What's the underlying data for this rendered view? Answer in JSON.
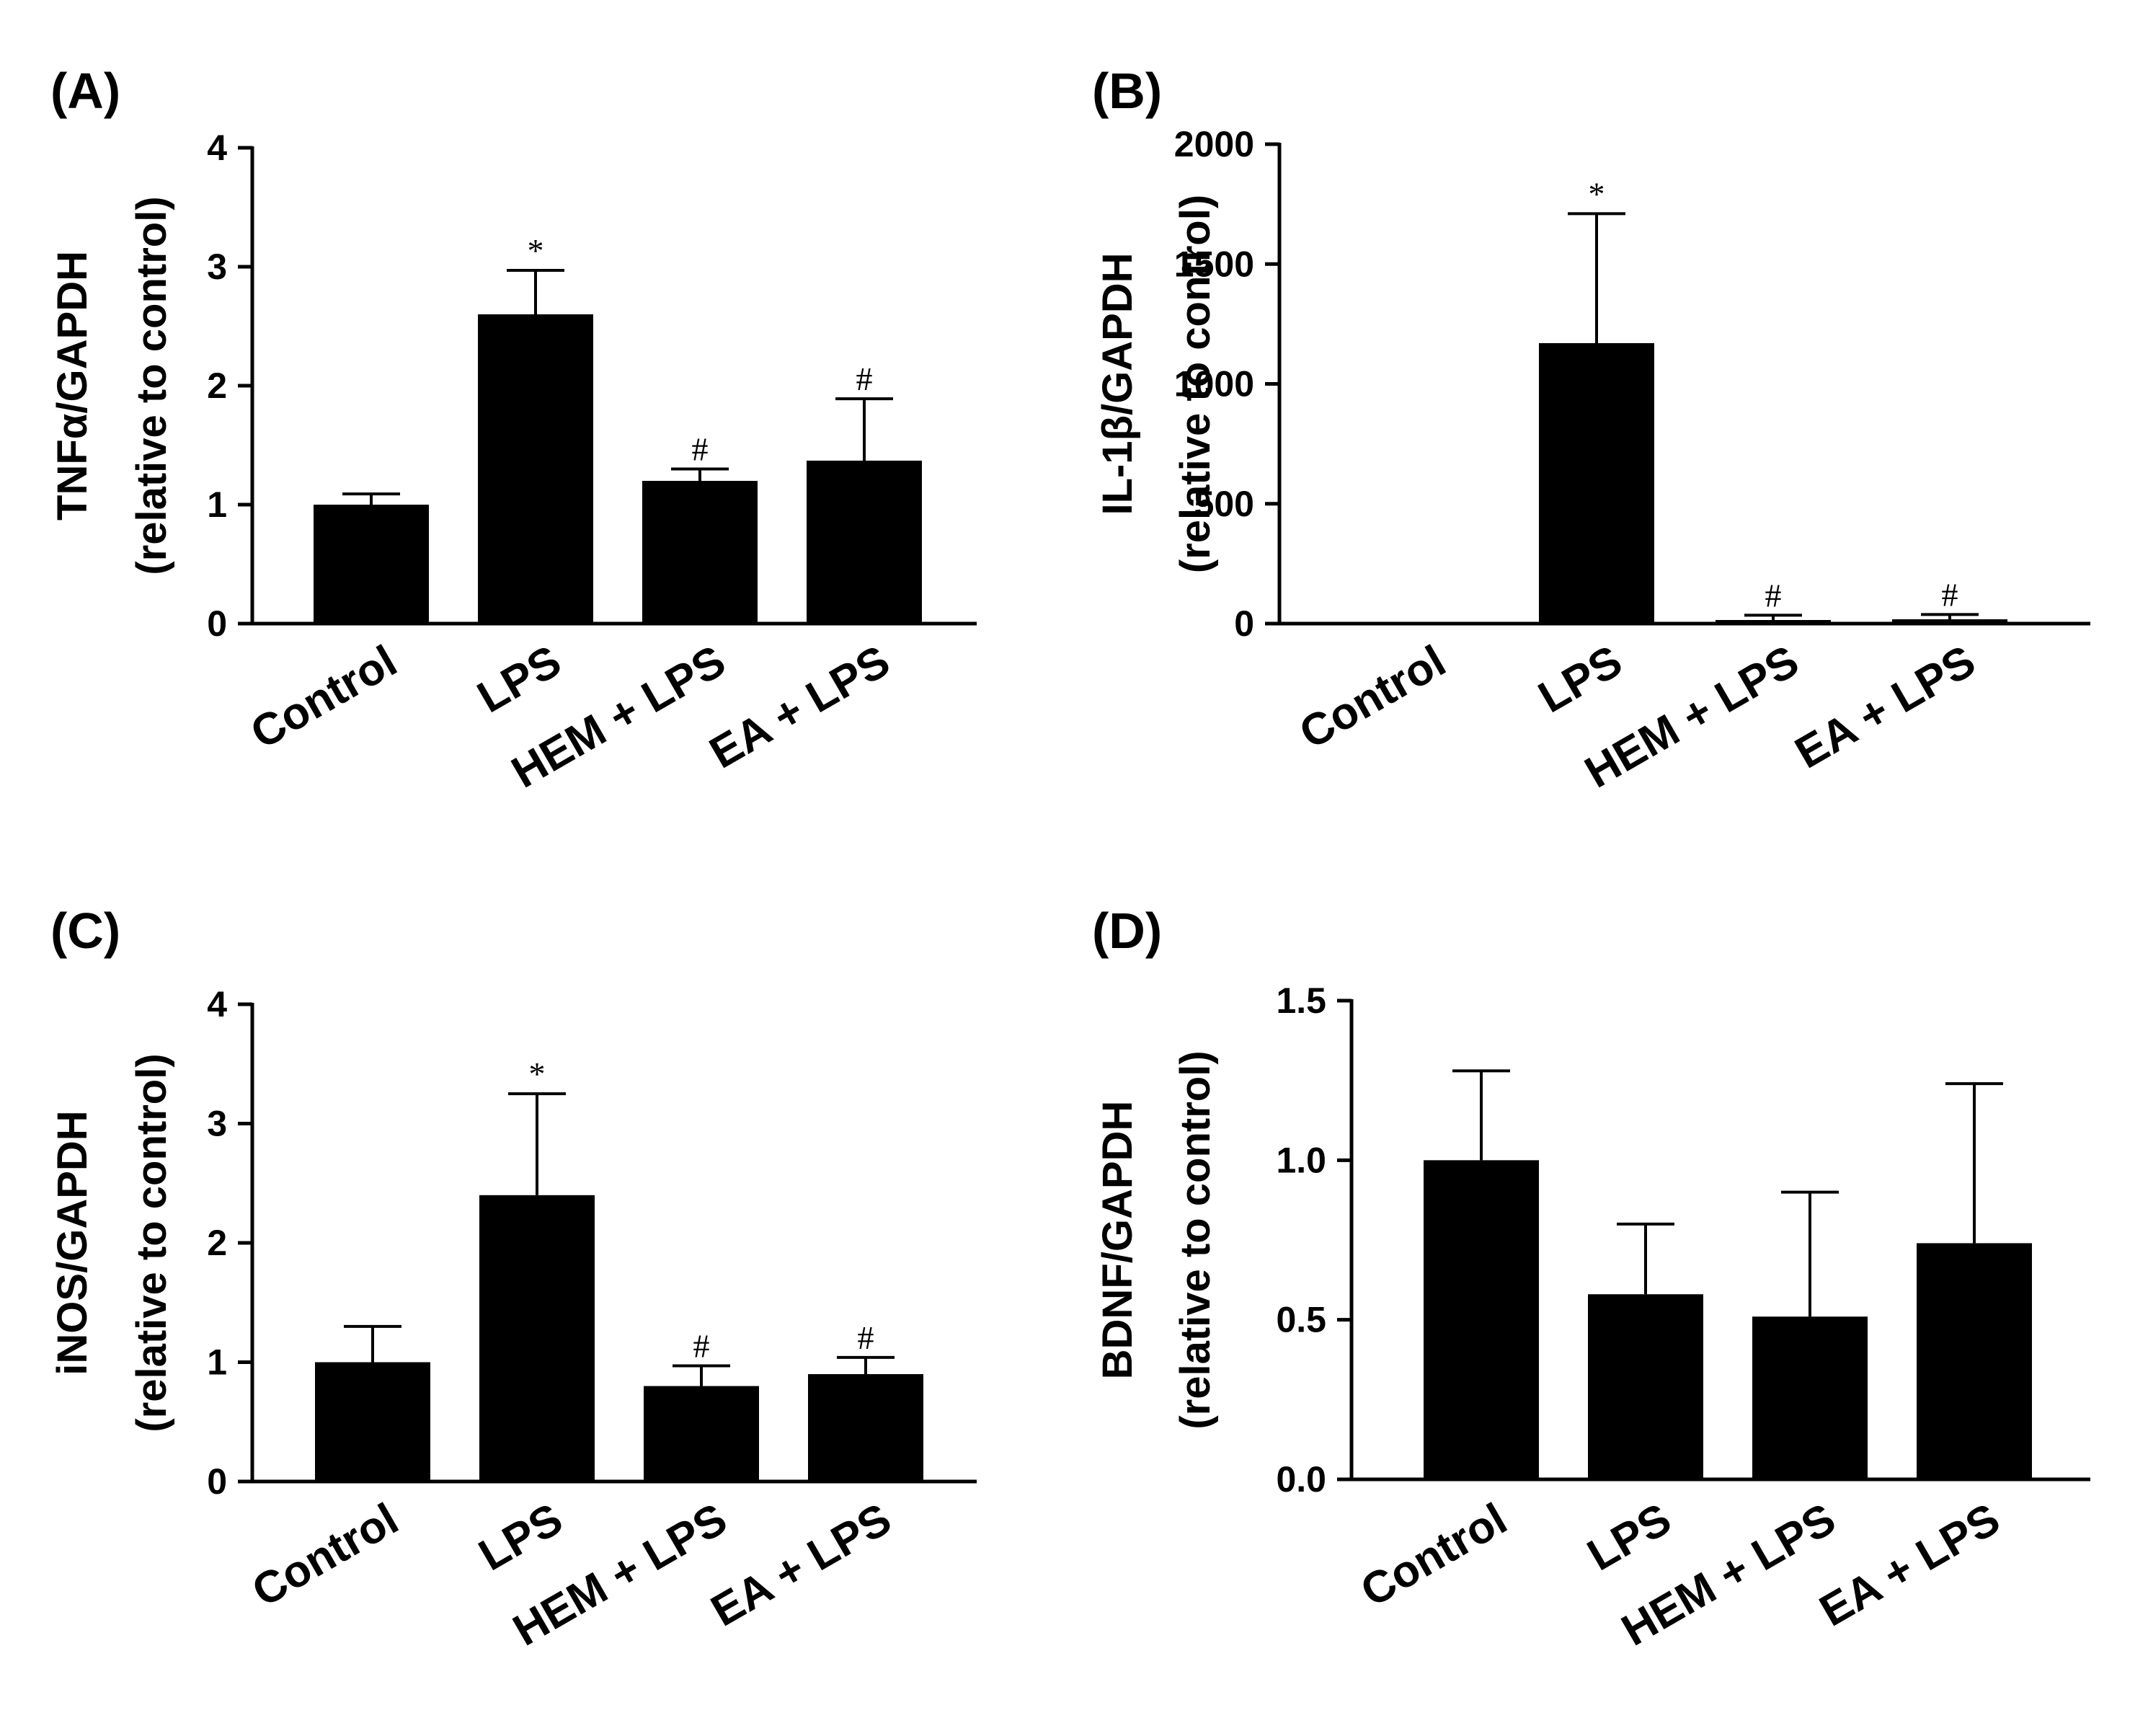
{
  "chart_data": [
    {
      "panel": "(A)",
      "type": "bar",
      "ylabel_line1": "TNFα/GAPDH",
      "ylabel_line2": "(relative to control)",
      "categories": [
        "Control",
        "LPS",
        "HEM + LPS",
        "EA + LPS"
      ],
      "values": [
        1.0,
        2.6,
        1.2,
        1.37
      ],
      "errors": [
        0.09,
        0.37,
        0.1,
        0.52
      ],
      "significance": [
        "",
        "*",
        "#",
        "#"
      ],
      "ylim": [
        0,
        4
      ],
      "yticks": [
        0,
        1,
        2,
        3,
        4
      ],
      "ytick_labels": [
        "0",
        "1",
        "2",
        "3",
        "4"
      ]
    },
    {
      "panel": "(B)",
      "type": "bar",
      "ylabel_line1": "IL-1β/GAPDH",
      "ylabel_line2": "(relative to control)",
      "categories": [
        "Control",
        "LPS",
        "HEM + LPS",
        "EA + LPS"
      ],
      "values": [
        1,
        1170,
        15,
        18
      ],
      "errors": [
        0,
        540,
        20,
        20
      ],
      "significance": [
        "",
        "*",
        "#",
        "#"
      ],
      "ylim": [
        0,
        2000
      ],
      "yticks": [
        0,
        500,
        1000,
        1500,
        2000
      ],
      "ytick_labels": [
        "0",
        "500",
        "1000",
        "1500",
        "2000"
      ]
    },
    {
      "panel": "(C)",
      "type": "bar",
      "ylabel_line1": "iNOS/GAPDH",
      "ylabel_line2": "(relative to control)",
      "categories": [
        "Control",
        "LPS",
        "HEM + LPS",
        "EA + LPS"
      ],
      "values": [
        1.0,
        2.4,
        0.8,
        0.9
      ],
      "errors": [
        0.3,
        0.85,
        0.17,
        0.14
      ],
      "significance": [
        "",
        "*",
        "#",
        "#"
      ],
      "ylim": [
        0,
        4
      ],
      "yticks": [
        0,
        1,
        2,
        3,
        4
      ],
      "ytick_labels": [
        "0",
        "1",
        "2",
        "3",
        "4"
      ]
    },
    {
      "panel": "(D)",
      "type": "bar",
      "ylabel_line1": "BDNF/GAPDH",
      "ylabel_line2": "(relative to control)",
      "categories": [
        "Control",
        "LPS",
        "HEM + LPS",
        "EA + LPS"
      ],
      "values": [
        1.0,
        0.58,
        0.51,
        0.74
      ],
      "errors": [
        0.28,
        0.22,
        0.39,
        0.5
      ],
      "significance": [
        "",
        "",
        "",
        ""
      ],
      "ylim": [
        0,
        1.5
      ],
      "yticks": [
        0,
        0.5,
        1.0,
        1.5
      ],
      "ytick_labels": [
        "0.0",
        "0.5",
        "1.0",
        "1.5"
      ]
    }
  ]
}
